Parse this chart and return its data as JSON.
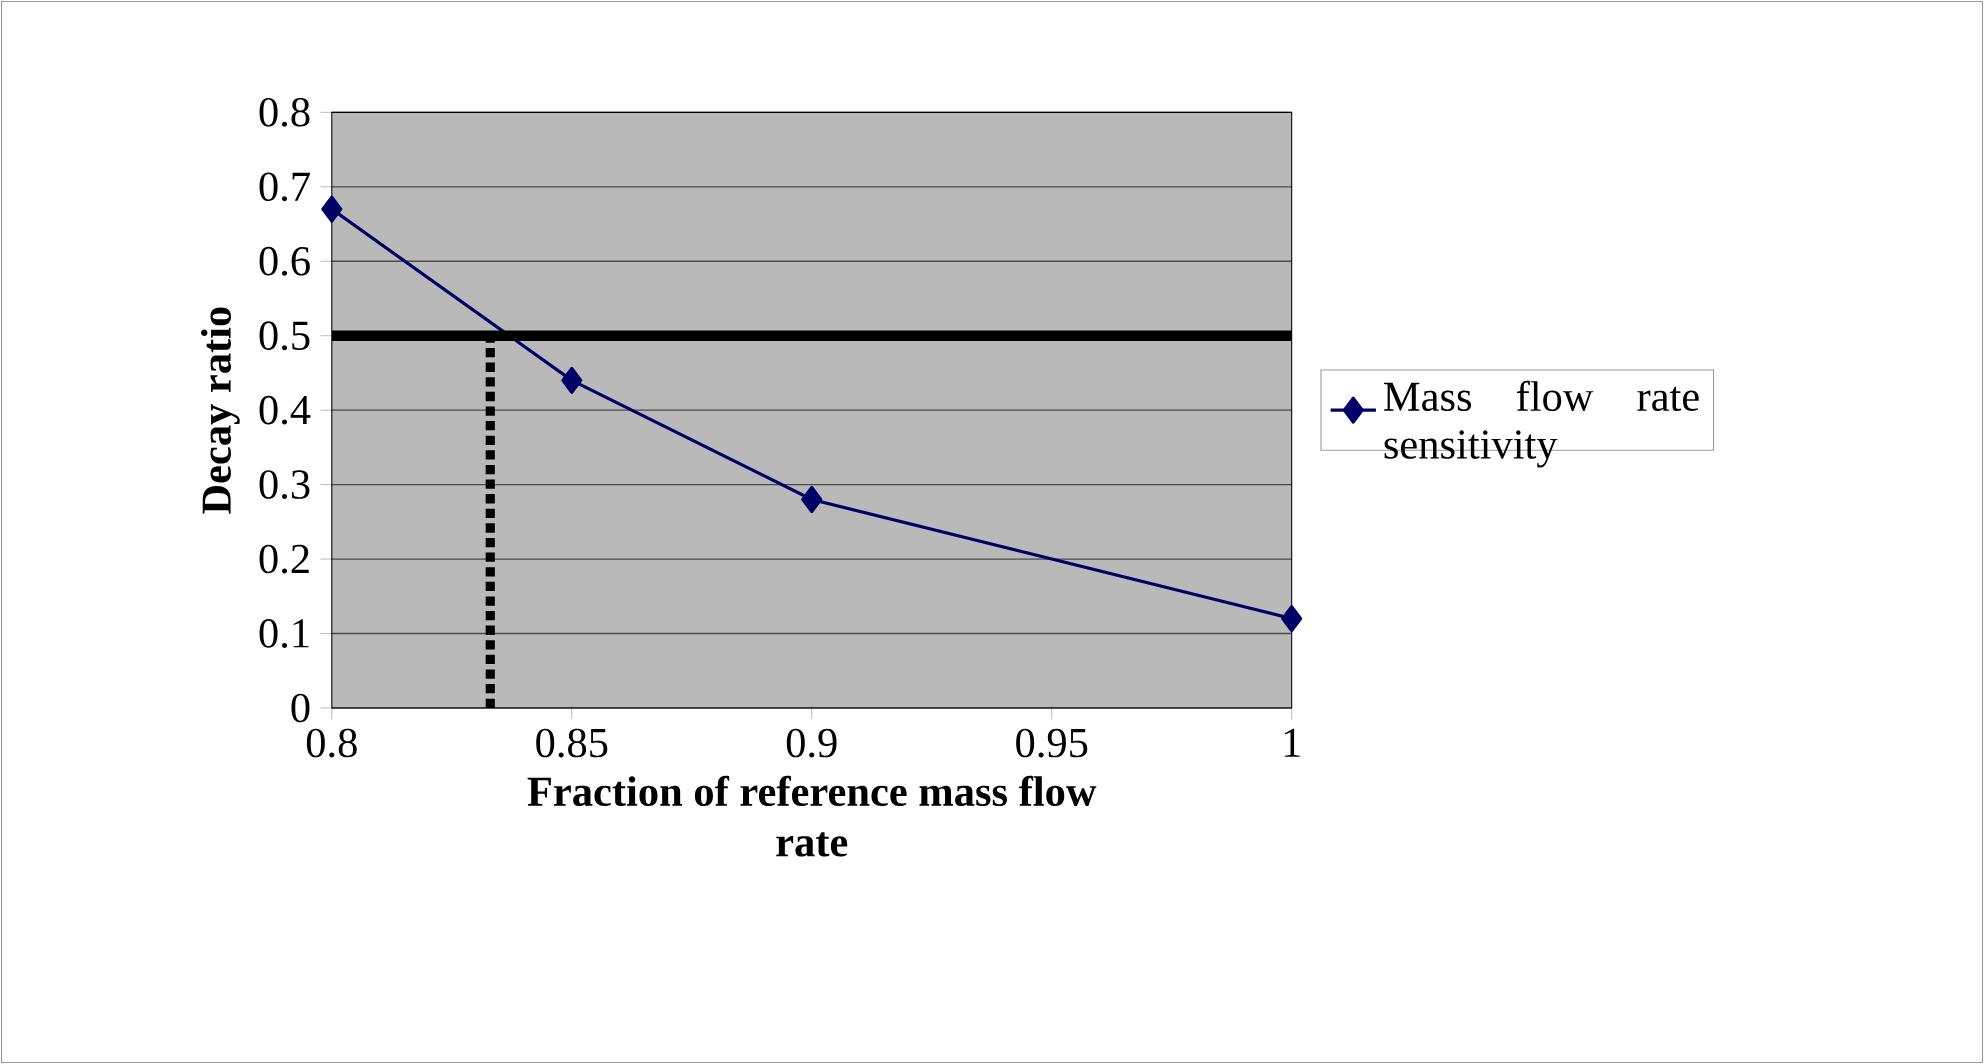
{
  "chart_data": {
    "type": "line",
    "xlabel": "Fraction of reference mass flow rate",
    "ylabel": "Decay ratio",
    "x": [
      0.8,
      0.85,
      0.9,
      1.0
    ],
    "series": [
      {
        "name": "Mass flow rate sensitivity",
        "color": "#000066",
        "values": [
          0.67,
          0.44,
          0.28,
          0.12
        ]
      }
    ],
    "xlim": [
      0.8,
      1.0
    ],
    "xticks": [
      0.8,
      0.85,
      0.9,
      0.95,
      1
    ],
    "ylim": [
      0,
      0.8
    ],
    "yticks": [
      0,
      0.1,
      0.2,
      0.3,
      0.4,
      0.5,
      0.6,
      0.7,
      0.8
    ],
    "ref_lines": [
      {
        "axis": "y",
        "value": 0.5,
        "color": "#000000",
        "line_style": "solid"
      },
      {
        "axis": "x",
        "value": 0.833,
        "color": "#000000",
        "line_style": "dotted"
      }
    ],
    "grid": "y",
    "legend": "right",
    "marker": "diamond",
    "line_style": "solid"
  }
}
